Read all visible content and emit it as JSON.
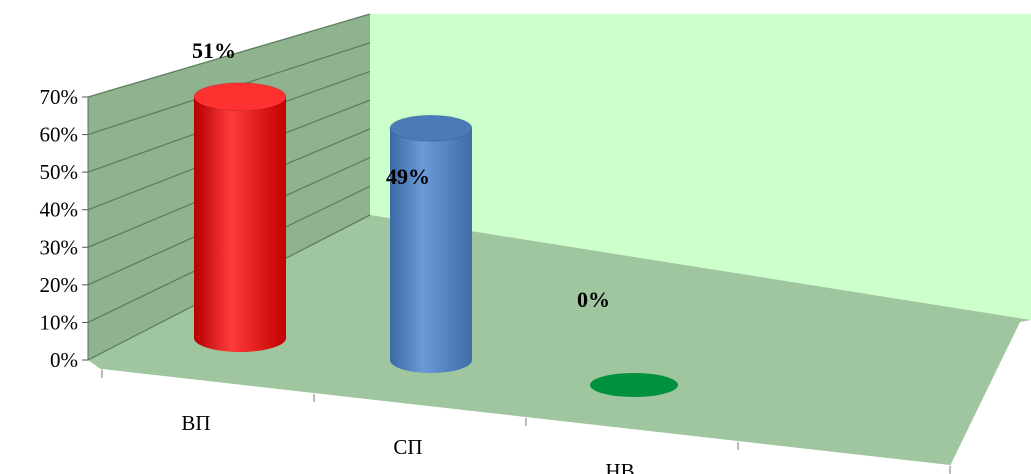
{
  "chart_data": {
    "type": "bar",
    "categories": [
      "ВП",
      "СП",
      "НВ"
    ],
    "values": [
      51,
      49,
      0
    ],
    "data_labels": [
      "51%",
      "49%",
      "0%"
    ],
    "y_ticks": [
      "0%",
      "10%",
      "20%",
      "30%",
      "40%",
      "50%",
      "60%",
      "70%"
    ],
    "ylim": [
      0,
      70
    ],
    "grid": true,
    "colors": {
      "bar_1": "#ff0000",
      "bar_2": "#4f81bd",
      "bar_3": "#00913f",
      "side_wall": "#8fb28f",
      "back_wall": "#ccffcc",
      "floor": "#9fc69f"
    }
  }
}
